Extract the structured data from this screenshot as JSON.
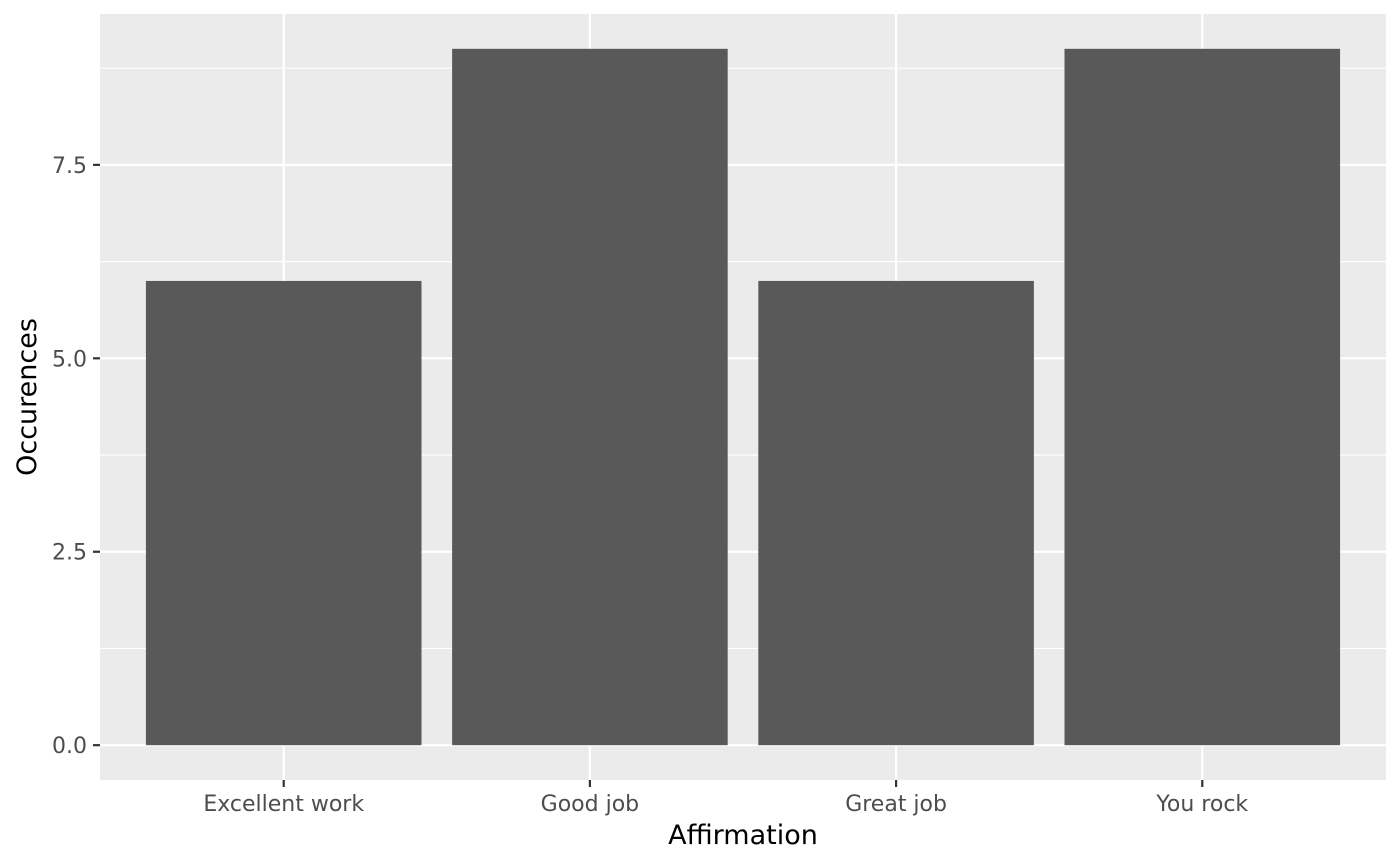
{
  "chart_data": {
    "type": "bar",
    "title": "",
    "xlabel": "Affirmation",
    "ylabel": "Occurences",
    "categories": [
      "Excellent work",
      "Good job",
      "Great job",
      "You rock"
    ],
    "values": [
      6,
      9,
      6,
      9
    ],
    "ylim": [
      -0.45,
      9.45
    ],
    "y_ticks": [
      0,
      2.5,
      5,
      7.5
    ],
    "y_tick_labels": [
      "0.0",
      "2.5",
      "5.0",
      "7.5"
    ],
    "grid": true,
    "legend": "none",
    "colors": {
      "panel_background": "#ebebeb",
      "grid": "#ffffff",
      "bar_fill": "#595959",
      "tick_text": "#4d4d4d",
      "axis_title": "#000000"
    }
  }
}
